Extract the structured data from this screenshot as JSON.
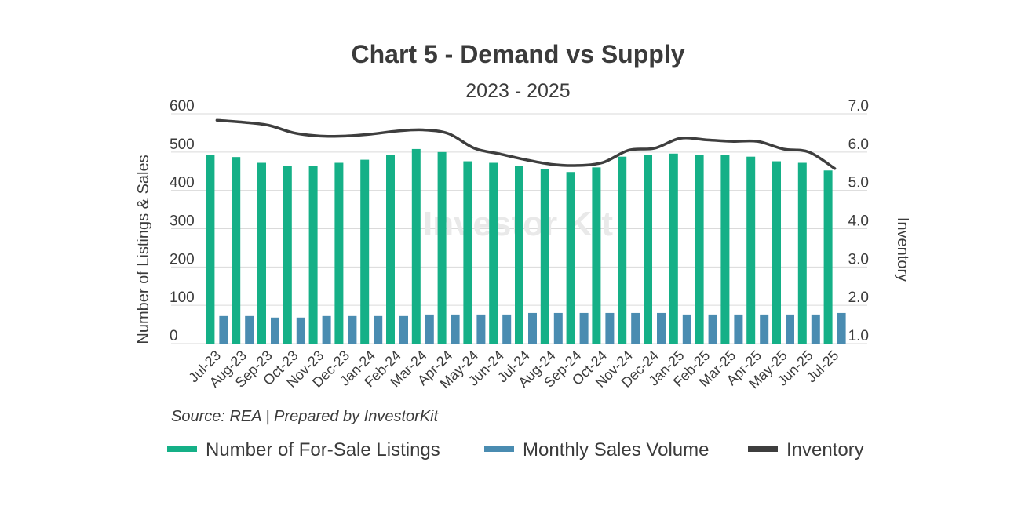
{
  "chart_data": {
    "type": "bar",
    "title": "Chart 5 - Demand vs Supply",
    "subtitle": "2023 - 2025",
    "ylabel": "Number of Listings & Sales",
    "y2label": "Inventory",
    "ylim": [
      0,
      600
    ],
    "y2lim": [
      1.0,
      7.0
    ],
    "yticks": [
      "600",
      "500",
      "400",
      "300",
      "200",
      "100",
      "0"
    ],
    "y2ticks": [
      "7.0",
      "6.0",
      "5.0",
      "4.0",
      "3.0",
      "2.0",
      "1.0"
    ],
    "categories": [
      "Jul-23",
      "Aug-23",
      "Sep-23",
      "Oct-23",
      "Nov-23",
      "Dec-23",
      "Jan-24",
      "Feb-24",
      "Mar-24",
      "Apr-24",
      "May-24",
      "Jun-24",
      "Jul-24",
      "Aug-24",
      "Sep-24",
      "Oct-24",
      "Nov-24",
      "Dec-24",
      "Jan-25",
      "Feb-25",
      "Mar-25",
      "Apr-25",
      "May-25",
      "Jun-25",
      "Jul-25"
    ],
    "series": [
      {
        "name": "Number of For-Sale Listings",
        "type": "bar",
        "color": "#15b087",
        "values": [
          492,
          487,
          472,
          464,
          464,
          472,
          480,
          492,
          508,
          500,
          476,
          472,
          464,
          456,
          448,
          460,
          488,
          492,
          496,
          492,
          492,
          488,
          476,
          472,
          452
        ]
      },
      {
        "name": "Monthly Sales Volume",
        "type": "bar",
        "color": "#4a8cb1",
        "values": [
          72,
          72,
          68,
          68,
          72,
          72,
          72,
          72,
          76,
          76,
          76,
          76,
          80,
          80,
          80,
          80,
          80,
          80,
          76,
          76,
          76,
          76,
          76,
          76,
          80
        ]
      },
      {
        "name": "Inventory",
        "type": "line",
        "axis": "right",
        "color": "#3e3e3e",
        "values": [
          6.83,
          6.78,
          6.7,
          6.5,
          6.42,
          6.42,
          6.47,
          6.55,
          6.58,
          6.48,
          6.1,
          5.95,
          5.8,
          5.68,
          5.65,
          5.73,
          6.05,
          6.1,
          6.36,
          6.32,
          6.28,
          6.28,
          6.08,
          6.0,
          5.57
        ]
      }
    ],
    "source": "Source: REA | Prepared by InvestorKit",
    "watermark": "Investor Kit",
    "legend_position": "bottom"
  }
}
